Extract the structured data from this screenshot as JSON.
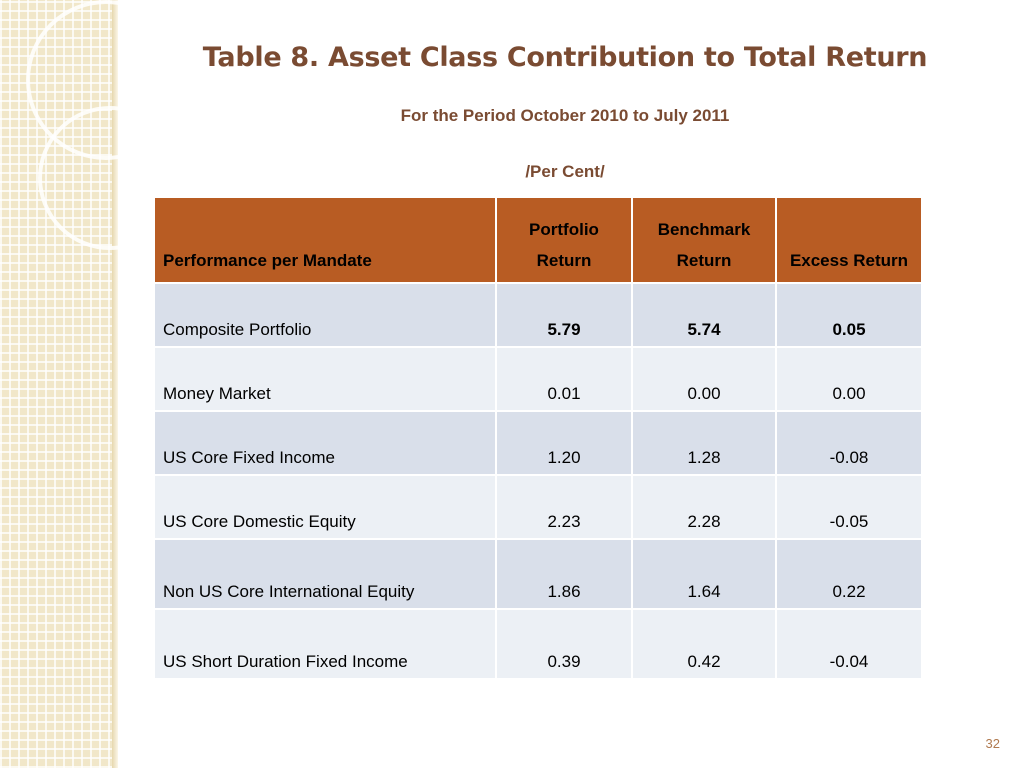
{
  "slide": {
    "title": "Table 8. Asset Class Contribution to Total Return",
    "subtitle": "For the Period October 2010 to July 2011",
    "units": "/Per Cent/",
    "page_number": "32"
  },
  "table": {
    "headers": {
      "mandate": "Performance per Mandate",
      "portfolio": "Portfolio Return",
      "benchmark": "Benchmark Return",
      "excess": "Excess Return"
    },
    "rows": [
      {
        "mandate": "Composite Portfolio",
        "portfolio": "5.79",
        "benchmark": "5.74",
        "excess": "0.05"
      },
      {
        "mandate": "Money Market",
        "portfolio": "0.01",
        "benchmark": "0.00",
        "excess": "0.00"
      },
      {
        "mandate": "US Core Fixed Income",
        "portfolio": "1.20",
        "benchmark": "1.28",
        "excess": "-0.08"
      },
      {
        "mandate": "US Core Domestic Equity",
        "portfolio": "2.23",
        "benchmark": "2.28",
        "excess": "-0.05"
      },
      {
        "mandate": "Non US Core International Equity",
        "portfolio": "1.86",
        "benchmark": "1.64",
        "excess": "0.22"
      },
      {
        "mandate": "US Short Duration Fixed Income",
        "portfolio": "0.39",
        "benchmark": "0.42",
        "excess": "-0.04"
      }
    ]
  },
  "colors": {
    "title": "#7a4b32",
    "header_fill": "#b85c23",
    "row_band_dark": "#d9dfea",
    "row_band_light": "#ecf0f5",
    "side_band": "#f1e7c9"
  }
}
